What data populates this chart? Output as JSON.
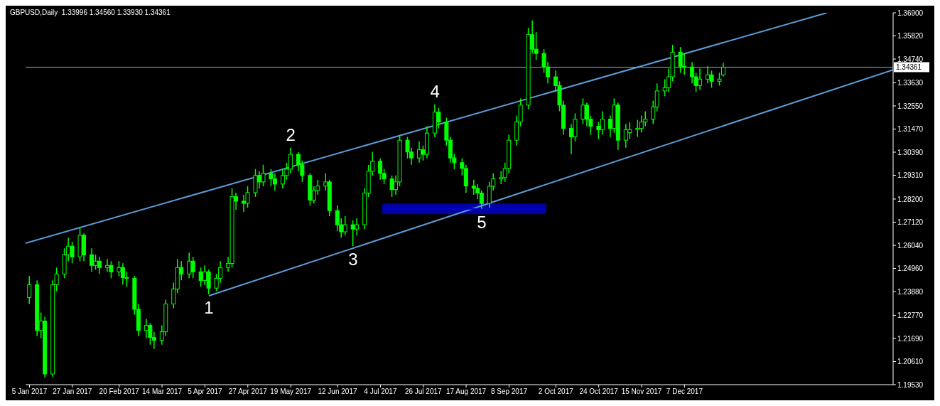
{
  "chart_data": {
    "type": "candlestick",
    "title": "GBPUSD,Daily  1.33996 1.34560 1.33930 1.34361",
    "color": "#00ff00",
    "x": [
      "2017-01-05",
      "2017-01-09",
      "2017-01-11",
      "2017-01-13",
      "2017-01-17",
      "2017-01-19",
      "2017-01-23",
      "2017-01-25",
      "2017-01-27",
      "2017-01-31",
      "2017-02-02",
      "2017-02-06",
      "2017-02-08",
      "2017-02-10",
      "2017-02-14",
      "2017-02-16",
      "2017-02-20",
      "2017-02-22",
      "2017-02-24",
      "2017-02-28",
      "2017-03-02",
      "2017-03-06",
      "2017-03-08",
      "2017-03-10",
      "2017-03-14",
      "2017-03-16",
      "2017-03-20",
      "2017-03-22",
      "2017-03-24",
      "2017-03-28",
      "2017-03-30",
      "2017-04-03",
      "2017-04-05",
      "2017-04-07",
      "2017-04-11",
      "2017-04-13",
      "2017-04-17",
      "2017-04-19",
      "2017-04-21",
      "2017-04-25",
      "2017-04-27",
      "2017-05-01",
      "2017-05-03",
      "2017-05-05",
      "2017-05-09",
      "2017-05-11",
      "2017-05-15",
      "2017-05-17",
      "2017-05-19",
      "2017-05-23",
      "2017-05-25",
      "2017-05-29",
      "2017-05-31",
      "2017-06-02",
      "2017-06-06",
      "2017-06-08",
      "2017-06-12",
      "2017-06-14",
      "2017-06-16",
      "2017-06-20",
      "2017-06-22",
      "2017-06-26",
      "2017-06-28",
      "2017-06-30",
      "2017-07-04",
      "2017-07-06",
      "2017-07-10",
      "2017-07-12",
      "2017-07-14",
      "2017-07-18",
      "2017-07-20",
      "2017-07-24",
      "2017-07-26",
      "2017-07-28",
      "2017-08-01",
      "2017-08-03",
      "2017-08-07",
      "2017-08-09",
      "2017-08-11",
      "2017-08-15",
      "2017-08-17",
      "2017-08-21",
      "2017-08-23",
      "2017-08-25",
      "2017-08-29",
      "2017-08-31",
      "2017-09-04",
      "2017-09-06",
      "2017-09-08",
      "2017-09-12",
      "2017-09-14",
      "2017-09-18",
      "2017-09-20",
      "2017-09-22",
      "2017-09-26",
      "2017-09-28",
      "2017-10-02",
      "2017-10-04",
      "2017-10-06",
      "2017-10-10",
      "2017-10-12",
      "2017-10-16",
      "2017-10-18",
      "2017-10-20",
      "2017-10-24",
      "2017-10-26",
      "2017-10-30",
      "2017-11-01",
      "2017-11-03",
      "2017-11-07",
      "2017-11-09",
      "2017-11-13",
      "2017-11-15",
      "2017-11-17",
      "2017-11-21",
      "2017-11-23",
      "2017-11-27",
      "2017-11-29",
      "2017-12-01",
      "2017-12-05",
      "2017-12-07",
      "2017-12-11",
      "2017-12-13",
      "2017-12-15",
      "2017-12-19",
      "2017-12-21",
      "2017-12-25",
      "2017-12-27"
    ],
    "ohlc": [
      [
        1.236,
        1.246,
        1.233,
        1.242
      ],
      [
        1.242,
        1.244,
        1.218,
        1.2206
      ],
      [
        1.2206,
        1.229,
        1.217,
        1.225
      ],
      [
        1.225,
        1.227,
        1.1986,
        1.2003
      ],
      [
        1.2003,
        1.244,
        1.199,
        1.242
      ],
      [
        1.242,
        1.25,
        1.239,
        1.247
      ],
      [
        1.247,
        1.259,
        1.245,
        1.256
      ],
      [
        1.256,
        1.264,
        1.253,
        1.26
      ],
      [
        1.26,
        1.262,
        1.252,
        1.255
      ],
      [
        1.255,
        1.269,
        1.253,
        1.2651
      ],
      [
        1.2651,
        1.266,
        1.253,
        1.256
      ],
      [
        1.256,
        1.259,
        1.248,
        1.251
      ],
      [
        1.251,
        1.256,
        1.249,
        1.253
      ],
      [
        1.253,
        1.255,
        1.247,
        1.25
      ],
      [
        1.25,
        1.254,
        1.248,
        1.251
      ],
      [
        1.251,
        1.253,
        1.245,
        1.248
      ],
      [
        1.248,
        1.253,
        1.246,
        1.25
      ],
      [
        1.25,
        1.252,
        1.242,
        1.2453
      ],
      [
        1.2453,
        1.248,
        1.241,
        1.245
      ],
      [
        1.245,
        1.246,
        1.228,
        1.2305
      ],
      [
        1.2305,
        1.233,
        1.218,
        1.2206
      ],
      [
        1.2206,
        1.226,
        1.217,
        1.223
      ],
      [
        1.223,
        1.224,
        1.214,
        1.2174
      ],
      [
        1.2174,
        1.22,
        1.212,
        1.216
      ],
      [
        1.216,
        1.223,
        1.214,
        1.22
      ],
      [
        1.22,
        1.235,
        1.218,
        1.233
      ],
      [
        1.233,
        1.243,
        1.231,
        1.24
      ],
      [
        1.24,
        1.254,
        1.238,
        1.25
      ],
      [
        1.25,
        1.253,
        1.244,
        1.247
      ],
      [
        1.247,
        1.257,
        1.245,
        1.253
      ],
      [
        1.253,
        1.255,
        1.245,
        1.248
      ],
      [
        1.248,
        1.25,
        1.241,
        1.244
      ],
      [
        1.244,
        1.251,
        1.242,
        1.248
      ],
      [
        1.248,
        1.249,
        1.2375,
        1.2404
      ],
      [
        1.2404,
        1.247,
        1.239,
        1.245
      ],
      [
        1.245,
        1.253,
        1.243,
        1.25
      ],
      [
        1.25,
        1.255,
        1.248,
        1.2519
      ],
      [
        1.2519,
        1.287,
        1.25,
        1.2831
      ],
      [
        1.2831,
        1.285,
        1.277,
        1.281
      ],
      [
        1.281,
        1.284,
        1.276,
        1.28
      ],
      [
        1.28,
        1.288,
        1.278,
        1.285
      ],
      [
        1.285,
        1.296,
        1.283,
        1.293
      ],
      [
        1.293,
        1.295,
        1.287,
        1.29
      ],
      [
        1.29,
        1.298,
        1.288,
        1.294
      ],
      [
        1.294,
        1.296,
        1.288,
        1.2914
      ],
      [
        1.2914,
        1.294,
        1.286,
        1.289
      ],
      [
        1.289,
        1.296,
        1.287,
        1.293
      ],
      [
        1.293,
        1.299,
        1.291,
        1.296
      ],
      [
        1.296,
        1.306,
        1.294,
        1.3029
      ],
      [
        1.3029,
        1.304,
        1.295,
        1.298
      ],
      [
        1.298,
        1.3,
        1.29,
        1.293
      ],
      [
        1.293,
        1.294,
        1.279,
        1.2815
      ],
      [
        1.2815,
        1.288,
        1.28,
        1.286
      ],
      [
        1.286,
        1.291,
        1.284,
        1.2881
      ],
      [
        1.2881,
        1.294,
        1.286,
        1.29
      ],
      [
        1.29,
        1.291,
        1.274,
        1.2766
      ],
      [
        1.2766,
        1.279,
        1.267,
        1.27
      ],
      [
        1.27,
        1.273,
        1.264,
        1.2667
      ],
      [
        1.2667,
        1.274,
        1.265,
        1.27
      ],
      [
        1.27,
        1.272,
        1.26,
        1.268
      ],
      [
        1.268,
        1.273,
        1.265,
        1.27
      ],
      [
        1.27,
        1.287,
        1.268,
        1.2848
      ],
      [
        1.2848,
        1.298,
        1.283,
        1.295
      ],
      [
        1.295,
        1.304,
        1.293,
        1.2996
      ],
      [
        1.2996,
        1.301,
        1.291,
        1.294
      ],
      [
        1.294,
        1.296,
        1.289,
        1.2914
      ],
      [
        1.2914,
        1.293,
        1.283,
        1.2864
      ],
      [
        1.2864,
        1.293,
        1.284,
        1.29
      ],
      [
        1.29,
        1.312,
        1.288,
        1.3095
      ],
      [
        1.3095,
        1.311,
        1.301,
        1.304
      ],
      [
        1.304,
        1.306,
        1.298,
        1.3012
      ],
      [
        1.3012,
        1.309,
        1.299,
        1.305
      ],
      [
        1.305,
        1.307,
        1.3,
        1.3029
      ],
      [
        1.3029,
        1.316,
        1.301,
        1.3128
      ],
      [
        1.3128,
        1.3262,
        1.311,
        1.3226
      ],
      [
        1.3226,
        1.3245,
        1.315,
        1.318
      ],
      [
        1.318,
        1.32,
        1.307,
        1.3095
      ],
      [
        1.3095,
        1.311,
        1.299,
        1.3012
      ],
      [
        1.3012,
        1.303,
        1.296,
        1.299
      ],
      [
        1.299,
        1.301,
        1.293,
        1.2963
      ],
      [
        1.2963,
        1.298,
        1.285,
        1.2881
      ],
      [
        1.2881,
        1.291,
        1.284,
        1.287
      ],
      [
        1.287,
        1.289,
        1.282,
        1.2848
      ],
      [
        1.2848,
        1.286,
        1.2775,
        1.2799
      ],
      [
        1.2799,
        1.29,
        1.278,
        1.288
      ],
      [
        1.288,
        1.294,
        1.286,
        1.2914
      ],
      [
        1.2914,
        1.295,
        1.289,
        1.292
      ],
      [
        1.292,
        1.299,
        1.29,
        1.2963
      ],
      [
        1.2963,
        1.312,
        1.294,
        1.3095
      ],
      [
        1.3095,
        1.321,
        1.307,
        1.318
      ],
      [
        1.318,
        1.329,
        1.316,
        1.3259
      ],
      [
        1.3259,
        1.362,
        1.324,
        1.3588
      ],
      [
        1.3588,
        1.3654,
        1.35,
        1.352
      ],
      [
        1.352,
        1.36,
        1.347,
        1.35
      ],
      [
        1.35,
        1.352,
        1.341,
        1.3437
      ],
      [
        1.3437,
        1.346,
        1.336,
        1.3391
      ],
      [
        1.3391,
        1.342,
        1.332,
        1.335
      ],
      [
        1.335,
        1.337,
        1.323,
        1.3259
      ],
      [
        1.3259,
        1.328,
        1.312,
        1.315
      ],
      [
        1.315,
        1.317,
        1.303,
        1.3111
      ],
      [
        1.3111,
        1.322,
        1.309,
        1.3193
      ],
      [
        1.3193,
        1.329,
        1.317,
        1.3259
      ],
      [
        1.3259,
        1.327,
        1.316,
        1.3193
      ],
      [
        1.3193,
        1.321,
        1.312,
        1.316
      ],
      [
        1.316,
        1.318,
        1.31,
        1.3144
      ],
      [
        1.3144,
        1.323,
        1.312,
        1.3193
      ],
      [
        1.3193,
        1.321,
        1.311,
        1.315
      ],
      [
        1.315,
        1.329,
        1.313,
        1.3259
      ],
      [
        1.3259,
        1.327,
        1.305,
        1.3095
      ],
      [
        1.3095,
        1.317,
        1.306,
        1.3144
      ],
      [
        1.313,
        1.318,
        1.31,
        1.3144
      ],
      [
        1.3144,
        1.319,
        1.311,
        1.315
      ],
      [
        1.315,
        1.321,
        1.313,
        1.318
      ],
      [
        1.318,
        1.323,
        1.316,
        1.3193
      ],
      [
        1.3193,
        1.328,
        1.317,
        1.325
      ],
      [
        1.325,
        1.336,
        1.323,
        1.3325
      ],
      [
        1.3325,
        1.338,
        1.33,
        1.334
      ],
      [
        1.334,
        1.343,
        1.332,
        1.3391
      ],
      [
        1.3391,
        1.354,
        1.337,
        1.3506
      ],
      [
        1.3506,
        1.353,
        1.341,
        1.344
      ],
      [
        1.344,
        1.35,
        1.34,
        1.3437
      ],
      [
        1.3437,
        1.346,
        1.336,
        1.3391
      ],
      [
        1.3391,
        1.341,
        1.332,
        1.335
      ],
      [
        1.335,
        1.343,
        1.333,
        1.338
      ],
      [
        1.338,
        1.344,
        1.336,
        1.34
      ],
      [
        1.34,
        1.342,
        1.334,
        1.337
      ],
      [
        1.337,
        1.341,
        1.335,
        1.338
      ],
      [
        1.33996,
        1.3456,
        1.3393,
        1.34361
      ]
    ],
    "series": [
      {
        "type": "line",
        "color": "#5b9bd5",
        "x": [
          "2017-01-03",
          "2018-02-18"
        ],
        "values": [
          1.2614,
          1.369
        ]
      },
      {
        "type": "line",
        "color": "#5b9bd5",
        "x": [
          "2017-04-07",
          "2018-03-24"
        ],
        "values": [
          1.2368,
          1.3424
        ]
      },
      {
        "type": "line",
        "color": "#0000cc",
        "x": [
          "2017-07-05",
          "2017-09-27"
        ],
        "values": [
          1.2774,
          1.2774
        ],
        "lower": [
          1.2749,
          1.2749
        ],
        "upper": [
          1.2799,
          1.2799
        ]
      }
    ],
    "xlim": [
      "2017-01-03",
      "2018-03-24"
    ],
    "xticks": [
      {
        "value": "2017-01-05",
        "label": "5 Jan 2017"
      },
      {
        "value": "2017-01-27",
        "label": "27 Jan 2017"
      },
      {
        "value": "2017-02-20",
        "label": "20 Feb 2017"
      },
      {
        "value": "2017-03-14",
        "label": "14 Mar 2017"
      },
      {
        "value": "2017-04-05",
        "label": "5 Apr 2017"
      },
      {
        "value": "2017-04-27",
        "label": "27 Apr 2017"
      },
      {
        "value": "2017-05-19",
        "label": "19 May 2017"
      },
      {
        "value": "2017-06-12",
        "label": "12 Jun 2017"
      },
      {
        "value": "2017-07-04",
        "label": "4 Jul 2017"
      },
      {
        "value": "2017-07-26",
        "label": "26 Jul 2017"
      },
      {
        "value": "2017-08-17",
        "label": "17 Aug 2017"
      },
      {
        "value": "2017-09-08",
        "label": "8 Sep 2017"
      },
      {
        "value": "2017-10-02",
        "label": "2 Oct 2017"
      },
      {
        "value": "2017-10-24",
        "label": "24 Oct 2017"
      },
      {
        "value": "2017-11-15",
        "label": "15 Nov 2017"
      },
      {
        "value": "2017-12-07",
        "label": "7 Dec 2017"
      }
    ],
    "ylim": [
      1.1953,
      1.369
    ],
    "yticks": [
      {
        "value": 1.1953,
        "label": "1.19530"
      },
      {
        "value": 1.2061,
        "label": "1.20610"
      },
      {
        "value": 1.2169,
        "label": "1.21690"
      },
      {
        "value": 1.2277,
        "label": "1.22770"
      },
      {
        "value": 1.2388,
        "label": "1.23880"
      },
      {
        "value": 1.2496,
        "label": "1.24960"
      },
      {
        "value": 1.2604,
        "label": "1.26040"
      },
      {
        "value": 1.2712,
        "label": "1.27120"
      },
      {
        "value": 1.282,
        "label": "1.28200"
      },
      {
        "value": 1.2931,
        "label": "1.29310"
      },
      {
        "value": 1.3039,
        "label": "1.30390"
      },
      {
        "value": 1.3147,
        "label": "1.31470"
      },
      {
        "value": 1.3255,
        "label": "1.32550"
      },
      {
        "value": 1.3363,
        "label": "1.33630"
      },
      {
        "value": 1.3474,
        "label": "1.34740"
      },
      {
        "value": 1.3582,
        "label": "1.35820"
      },
      {
        "value": 1.369,
        "label": "1.36900"
      }
    ],
    "ref_lines": [
      {
        "axis": "y",
        "value": 1.34361,
        "label": "1.34361",
        "color": "#8fa9c8"
      }
    ],
    "annotations": [
      {
        "text": "1",
        "x": "2017-04-07",
        "y": 1.2375
      },
      {
        "text": "2",
        "x": "2017-05-19",
        "y": 1.306
      },
      {
        "text": "3",
        "x": "2017-06-20",
        "y": 1.26
      },
      {
        "text": "4",
        "x": "2017-08-01",
        "y": 1.3262
      },
      {
        "text": "5",
        "x": "2017-08-25",
        "y": 1.2775
      }
    ]
  }
}
